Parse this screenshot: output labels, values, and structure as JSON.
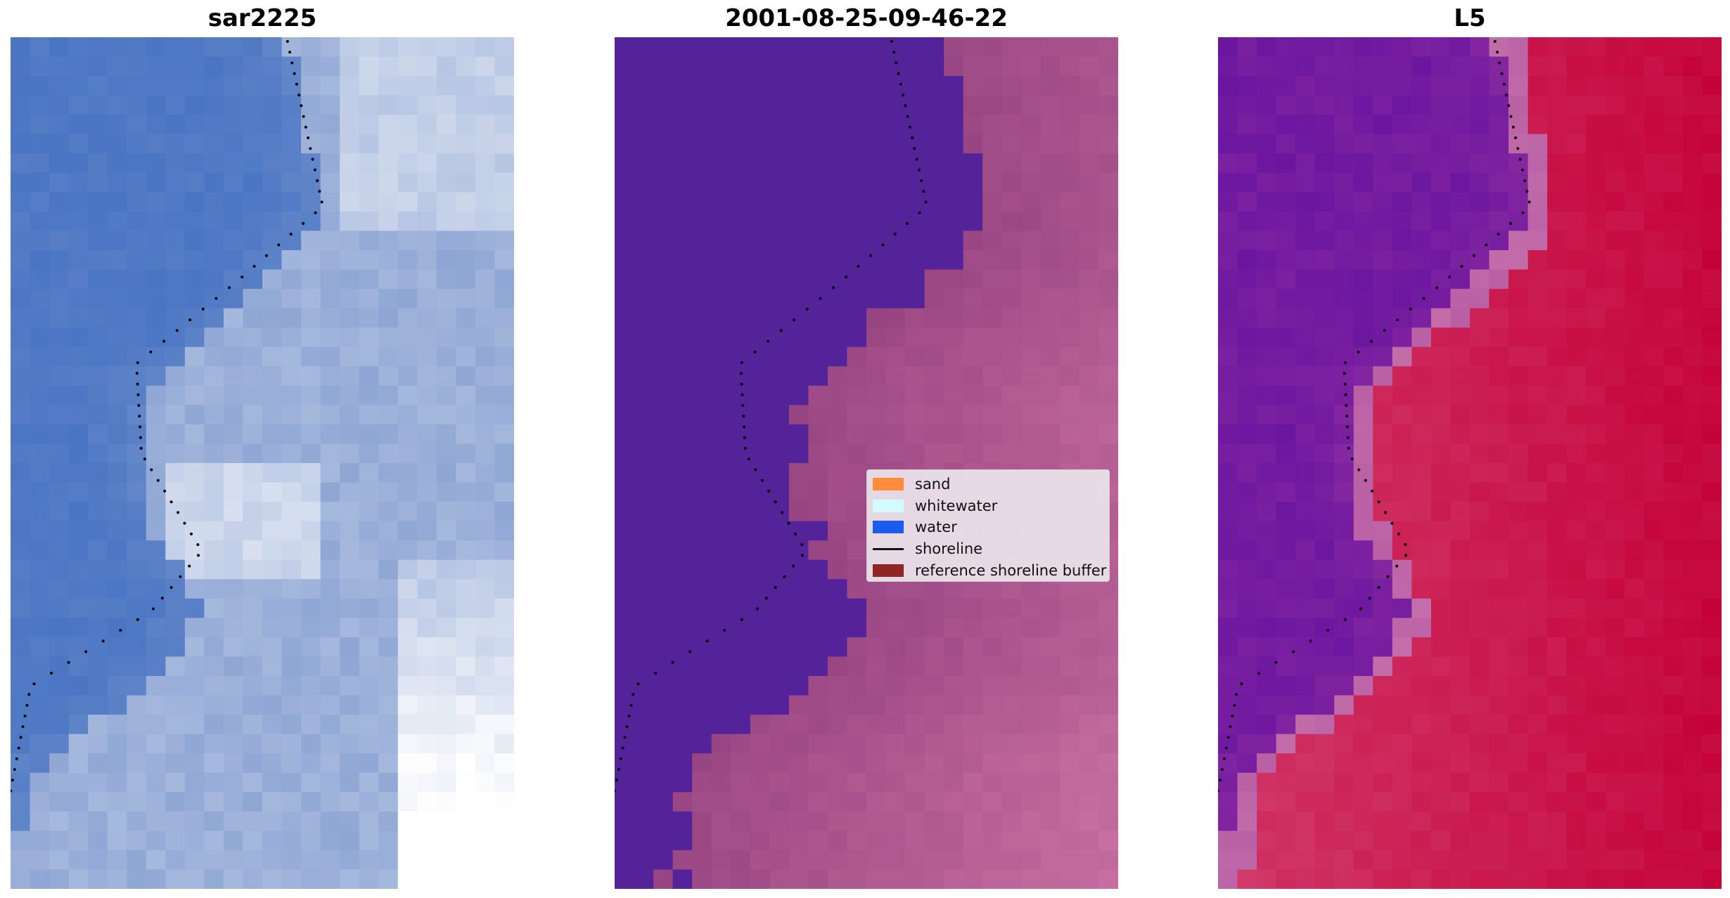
{
  "panels": [
    {
      "title": "sar2225"
    },
    {
      "title": "2001-08-25-09-46-22"
    },
    {
      "title": "L5"
    }
  ],
  "legend": {
    "items": [
      {
        "label": "sand",
        "color": "#ff8c3d",
        "kind": "patch"
      },
      {
        "label": "whitewater",
        "color": "#d4fbff",
        "kind": "patch"
      },
      {
        "label": "water",
        "color": "#1a5bf0",
        "kind": "patch"
      },
      {
        "label": "shoreline",
        "color": "#000000",
        "kind": "line"
      },
      {
        "label": "reference shoreline buffer",
        "color": "#8f2525",
        "kind": "patch"
      }
    ]
  },
  "colors": {
    "rgb_water": "#3d6cc0",
    "rgb_land": "#8fa6d4",
    "rgb_foam": "#ffffff",
    "class_water": "#542299",
    "class_land": "#92407f",
    "index_low": "#5a0aa0",
    "index_high": "#c40036",
    "shoreline_points": "#000000"
  }
}
